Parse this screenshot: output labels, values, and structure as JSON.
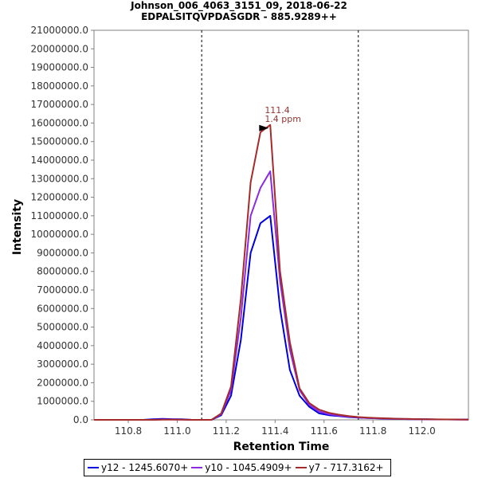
{
  "chart_data": {
    "type": "line",
    "title": "Johnson_006_4063_3151_09, 2018-06-22",
    "subtitle": "EDPALSITQVPDASGDR - 885.9289++",
    "xlabel": "Retention Time",
    "ylabel": "Intensity",
    "xlim": [
      110.66,
      112.19
    ],
    "ylim": [
      0,
      21000000
    ],
    "x_ticks": [
      110.8,
      111.0,
      111.2,
      111.4,
      111.6,
      111.8,
      112.0
    ],
    "x_tick_labels": [
      "110.8",
      "111.0",
      "111.2",
      "111.4",
      "111.6",
      "111.8",
      "112.0"
    ],
    "y_ticks": [
      0,
      1000000,
      2000000,
      3000000,
      4000000,
      5000000,
      6000000,
      7000000,
      8000000,
      9000000,
      10000000,
      11000000,
      12000000,
      13000000,
      14000000,
      15000000,
      16000000,
      17000000,
      18000000,
      19000000,
      20000000,
      21000000
    ],
    "y_tick_labels": [
      "0.0",
      "1000000.0",
      "2000000.0",
      "3000000.0",
      "4000000.0",
      "5000000.0",
      "6000000.0",
      "7000000.0",
      "8000000.0",
      "9000000.0",
      "10000000.0",
      "11000000.0",
      "12000000.0",
      "13000000.0",
      "14000000.0",
      "15000000.0",
      "16000000.0",
      "17000000.0",
      "18000000.0",
      "19000000.0",
      "20000000.0",
      "21000000.0"
    ],
    "grid": false,
    "legend_placement": "bottom",
    "vlines": [
      111.1,
      111.74
    ],
    "annotation": {
      "x": 111.4,
      "y": 15900000,
      "line1": "111.4",
      "line2": "1.4 ppm",
      "color": "#993333"
    },
    "x": [
      110.66,
      110.7,
      110.74,
      110.78,
      110.82,
      110.86,
      110.9,
      110.94,
      110.98,
      111.02,
      111.06,
      111.1,
      111.14,
      111.18,
      111.22,
      111.26,
      111.3,
      111.34,
      111.38,
      111.42,
      111.46,
      111.5,
      111.54,
      111.58,
      111.62,
      111.66,
      111.7,
      111.74,
      111.78,
      111.82,
      111.86,
      111.9,
      111.94,
      111.98,
      112.02,
      112.06,
      112.1,
      112.14,
      112.19
    ],
    "series": [
      {
        "name": "y12 - 1245.6070+",
        "color": "#0000dd",
        "values": [
          0,
          0,
          0,
          0,
          0,
          0,
          30000,
          50000,
          40000,
          30000,
          0,
          0,
          0,
          250000,
          1300000,
          4300000,
          9000000,
          10600000,
          11000000,
          6000000,
          2700000,
          1300000,
          700000,
          350000,
          250000,
          200000,
          150000,
          120000,
          100000,
          80000,
          60000,
          50000,
          40000,
          40000,
          30000,
          20000,
          20000,
          20000,
          20000
        ]
      },
      {
        "name": "y10 - 1045.4909+",
        "color": "#8a2be2",
        "values": [
          0,
          0,
          0,
          0,
          0,
          0,
          0,
          20000,
          20000,
          10000,
          0,
          0,
          0,
          300000,
          1600000,
          5500000,
          11000000,
          12500000,
          13400000,
          7500000,
          3800000,
          1600000,
          800000,
          450000,
          300000,
          230000,
          170000,
          130000,
          100000,
          80000,
          60000,
          50000,
          40000,
          30000,
          25000,
          20000,
          20000,
          15000,
          15000
        ]
      },
      {
        "name": "y7 - 717.3162+",
        "color": "#a52a2a",
        "values": [
          0,
          0,
          0,
          0,
          0,
          0,
          0,
          10000,
          10000,
          10000,
          0,
          0,
          0,
          350000,
          1800000,
          6500000,
          12800000,
          15500000,
          15900000,
          8000000,
          4200000,
          1700000,
          900000,
          550000,
          380000,
          280000,
          200000,
          150000,
          120000,
          100000,
          80000,
          60000,
          50000,
          40000,
          30000,
          25000,
          20000,
          20000,
          15000
        ]
      }
    ]
  }
}
